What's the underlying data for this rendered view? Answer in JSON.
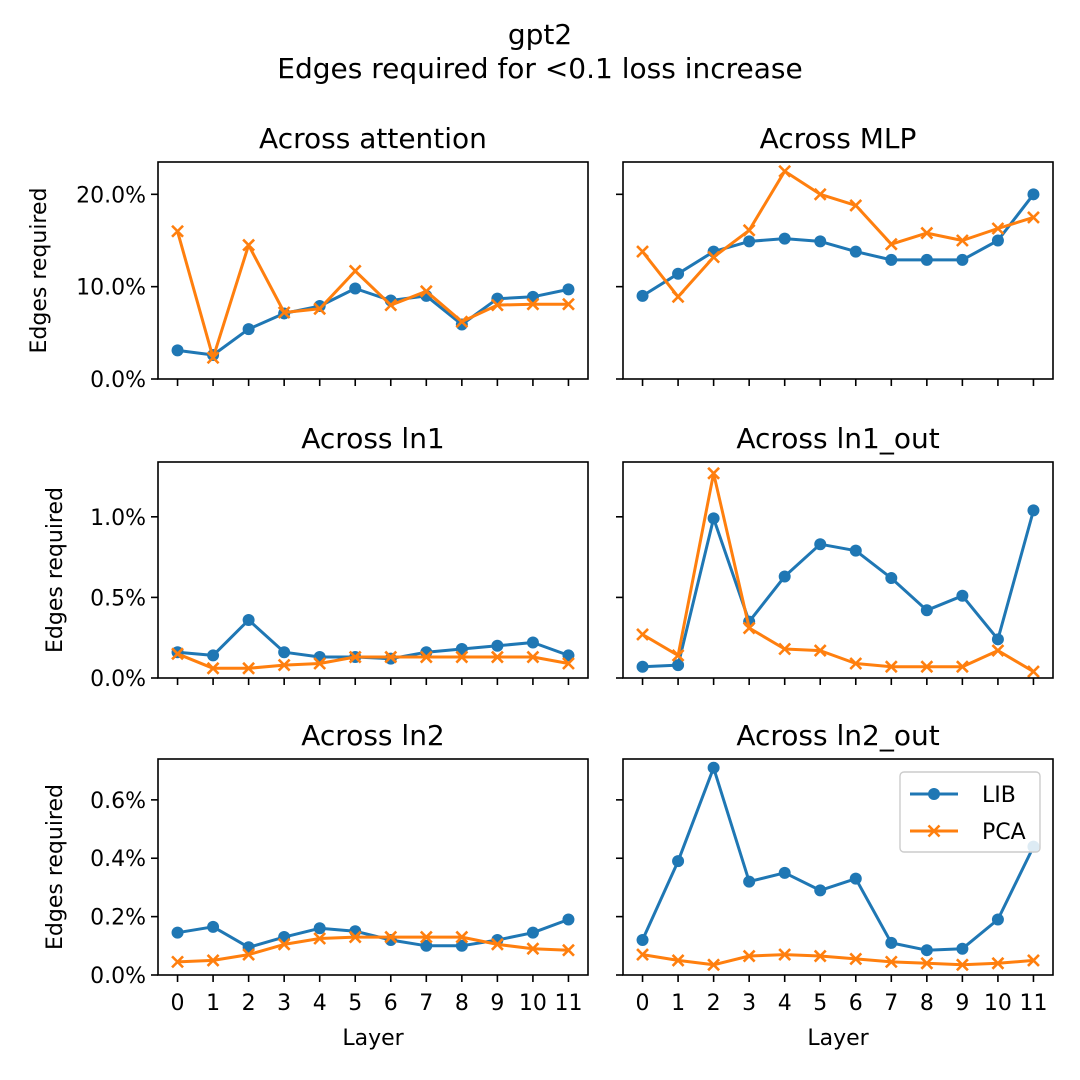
{
  "figure": {
    "title_line1": "gpt2",
    "title_line2": "Edges required for <0.1 loss increase"
  },
  "colors": {
    "LIB": "#1f77b4",
    "PCA": "#ff7f0e"
  },
  "legend": {
    "entries": [
      "LIB",
      "PCA"
    ],
    "location": "upper-right of Across ln2_out panel"
  },
  "chart_data": [
    {
      "type": "line",
      "title": "Across attention",
      "xlabel": "",
      "ylabel": "Edges required",
      "x": [
        0,
        1,
        2,
        3,
        4,
        5,
        6,
        7,
        8,
        9,
        10,
        11
      ],
      "ylim": [
        0,
        23.5
      ],
      "yticks": [
        0,
        10,
        20
      ],
      "ytick_labels": [
        "0.0%",
        "10.0%",
        "20.0%"
      ],
      "series": [
        {
          "name": "LIB",
          "values": [
            3.1,
            2.6,
            5.4,
            7.1,
            7.9,
            9.8,
            8.5,
            9.0,
            5.9,
            8.7,
            8.9,
            9.7
          ]
        },
        {
          "name": "PCA",
          "values": [
            16.0,
            2.3,
            14.5,
            7.2,
            7.6,
            11.7,
            8.0,
            9.5,
            6.2,
            8.0,
            8.1,
            8.1
          ]
        }
      ]
    },
    {
      "type": "line",
      "title": "Across MLP",
      "xlabel": "",
      "ylabel": "",
      "x": [
        0,
        1,
        2,
        3,
        4,
        5,
        6,
        7,
        8,
        9,
        10,
        11
      ],
      "ylim": [
        0,
        23.5
      ],
      "yticks": [
        0,
        10,
        20
      ],
      "ytick_labels": [
        "",
        "",
        ""
      ],
      "series": [
        {
          "name": "LIB",
          "values": [
            9.0,
            11.4,
            13.8,
            14.9,
            15.2,
            14.9,
            13.8,
            12.9,
            12.9,
            12.9,
            15.0,
            20.0
          ]
        },
        {
          "name": "PCA",
          "values": [
            13.8,
            8.9,
            13.2,
            16.1,
            22.5,
            20.0,
            18.8,
            14.6,
            15.8,
            15.0,
            16.3,
            17.5
          ]
        }
      ]
    },
    {
      "type": "line",
      "title": "Across ln1",
      "xlabel": "",
      "ylabel": "Edges required",
      "x": [
        0,
        1,
        2,
        3,
        4,
        5,
        6,
        7,
        8,
        9,
        10,
        11
      ],
      "ylim": [
        0,
        1.34
      ],
      "yticks": [
        0,
        0.5,
        1.0
      ],
      "ytick_labels": [
        "0.0%",
        "0.5%",
        "1.0%"
      ],
      "series": [
        {
          "name": "LIB",
          "values": [
            0.16,
            0.14,
            0.36,
            0.16,
            0.13,
            0.13,
            0.12,
            0.16,
            0.18,
            0.2,
            0.22,
            0.14
          ]
        },
        {
          "name": "PCA",
          "values": [
            0.15,
            0.06,
            0.06,
            0.08,
            0.09,
            0.13,
            0.13,
            0.13,
            0.13,
            0.13,
            0.13,
            0.09
          ]
        }
      ]
    },
    {
      "type": "line",
      "title": "Across ln1_out",
      "xlabel": "",
      "ylabel": "",
      "x": [
        0,
        1,
        2,
        3,
        4,
        5,
        6,
        7,
        8,
        9,
        10,
        11
      ],
      "ylim": [
        0,
        1.34
      ],
      "yticks": [
        0,
        0.5,
        1.0
      ],
      "ytick_labels": [
        "",
        "",
        ""
      ],
      "series": [
        {
          "name": "LIB",
          "values": [
            0.07,
            0.08,
            0.99,
            0.35,
            0.63,
            0.83,
            0.79,
            0.62,
            0.42,
            0.51,
            0.24,
            1.04
          ]
        },
        {
          "name": "PCA",
          "values": [
            0.27,
            0.14,
            1.27,
            0.31,
            0.18,
            0.17,
            0.09,
            0.07,
            0.07,
            0.07,
            0.17,
            0.04
          ]
        }
      ]
    },
    {
      "type": "line",
      "title": "Across ln2",
      "xlabel": "Layer",
      "ylabel": "Edges required",
      "x": [
        0,
        1,
        2,
        3,
        4,
        5,
        6,
        7,
        8,
        9,
        10,
        11
      ],
      "ylim": [
        0,
        0.74
      ],
      "yticks": [
        0,
        0.2,
        0.4,
        0.6
      ],
      "ytick_labels": [
        "0.0%",
        "0.2%",
        "0.4%",
        "0.6%"
      ],
      "series": [
        {
          "name": "LIB",
          "values": [
            0.145,
            0.165,
            0.095,
            0.13,
            0.16,
            0.15,
            0.12,
            0.1,
            0.1,
            0.12,
            0.145,
            0.19
          ]
        },
        {
          "name": "PCA",
          "values": [
            0.045,
            0.05,
            0.07,
            0.105,
            0.125,
            0.13,
            0.13,
            0.13,
            0.13,
            0.105,
            0.09,
            0.085
          ]
        }
      ]
    },
    {
      "type": "line",
      "title": "Across ln2_out",
      "xlabel": "Layer",
      "ylabel": "",
      "x": [
        0,
        1,
        2,
        3,
        4,
        5,
        6,
        7,
        8,
        9,
        10,
        11
      ],
      "ylim": [
        0,
        0.74
      ],
      "yticks": [
        0,
        0.2,
        0.4,
        0.6
      ],
      "ytick_labels": [
        "",
        "",
        "",
        ""
      ],
      "series": [
        {
          "name": "LIB",
          "values": [
            0.12,
            0.39,
            0.71,
            0.32,
            0.35,
            0.29,
            0.33,
            0.11,
            0.085,
            0.09,
            0.19,
            0.44
          ]
        },
        {
          "name": "PCA",
          "values": [
            0.07,
            0.05,
            0.035,
            0.065,
            0.07,
            0.065,
            0.055,
            0.045,
            0.04,
            0.035,
            0.04,
            0.05
          ]
        }
      ]
    }
  ]
}
